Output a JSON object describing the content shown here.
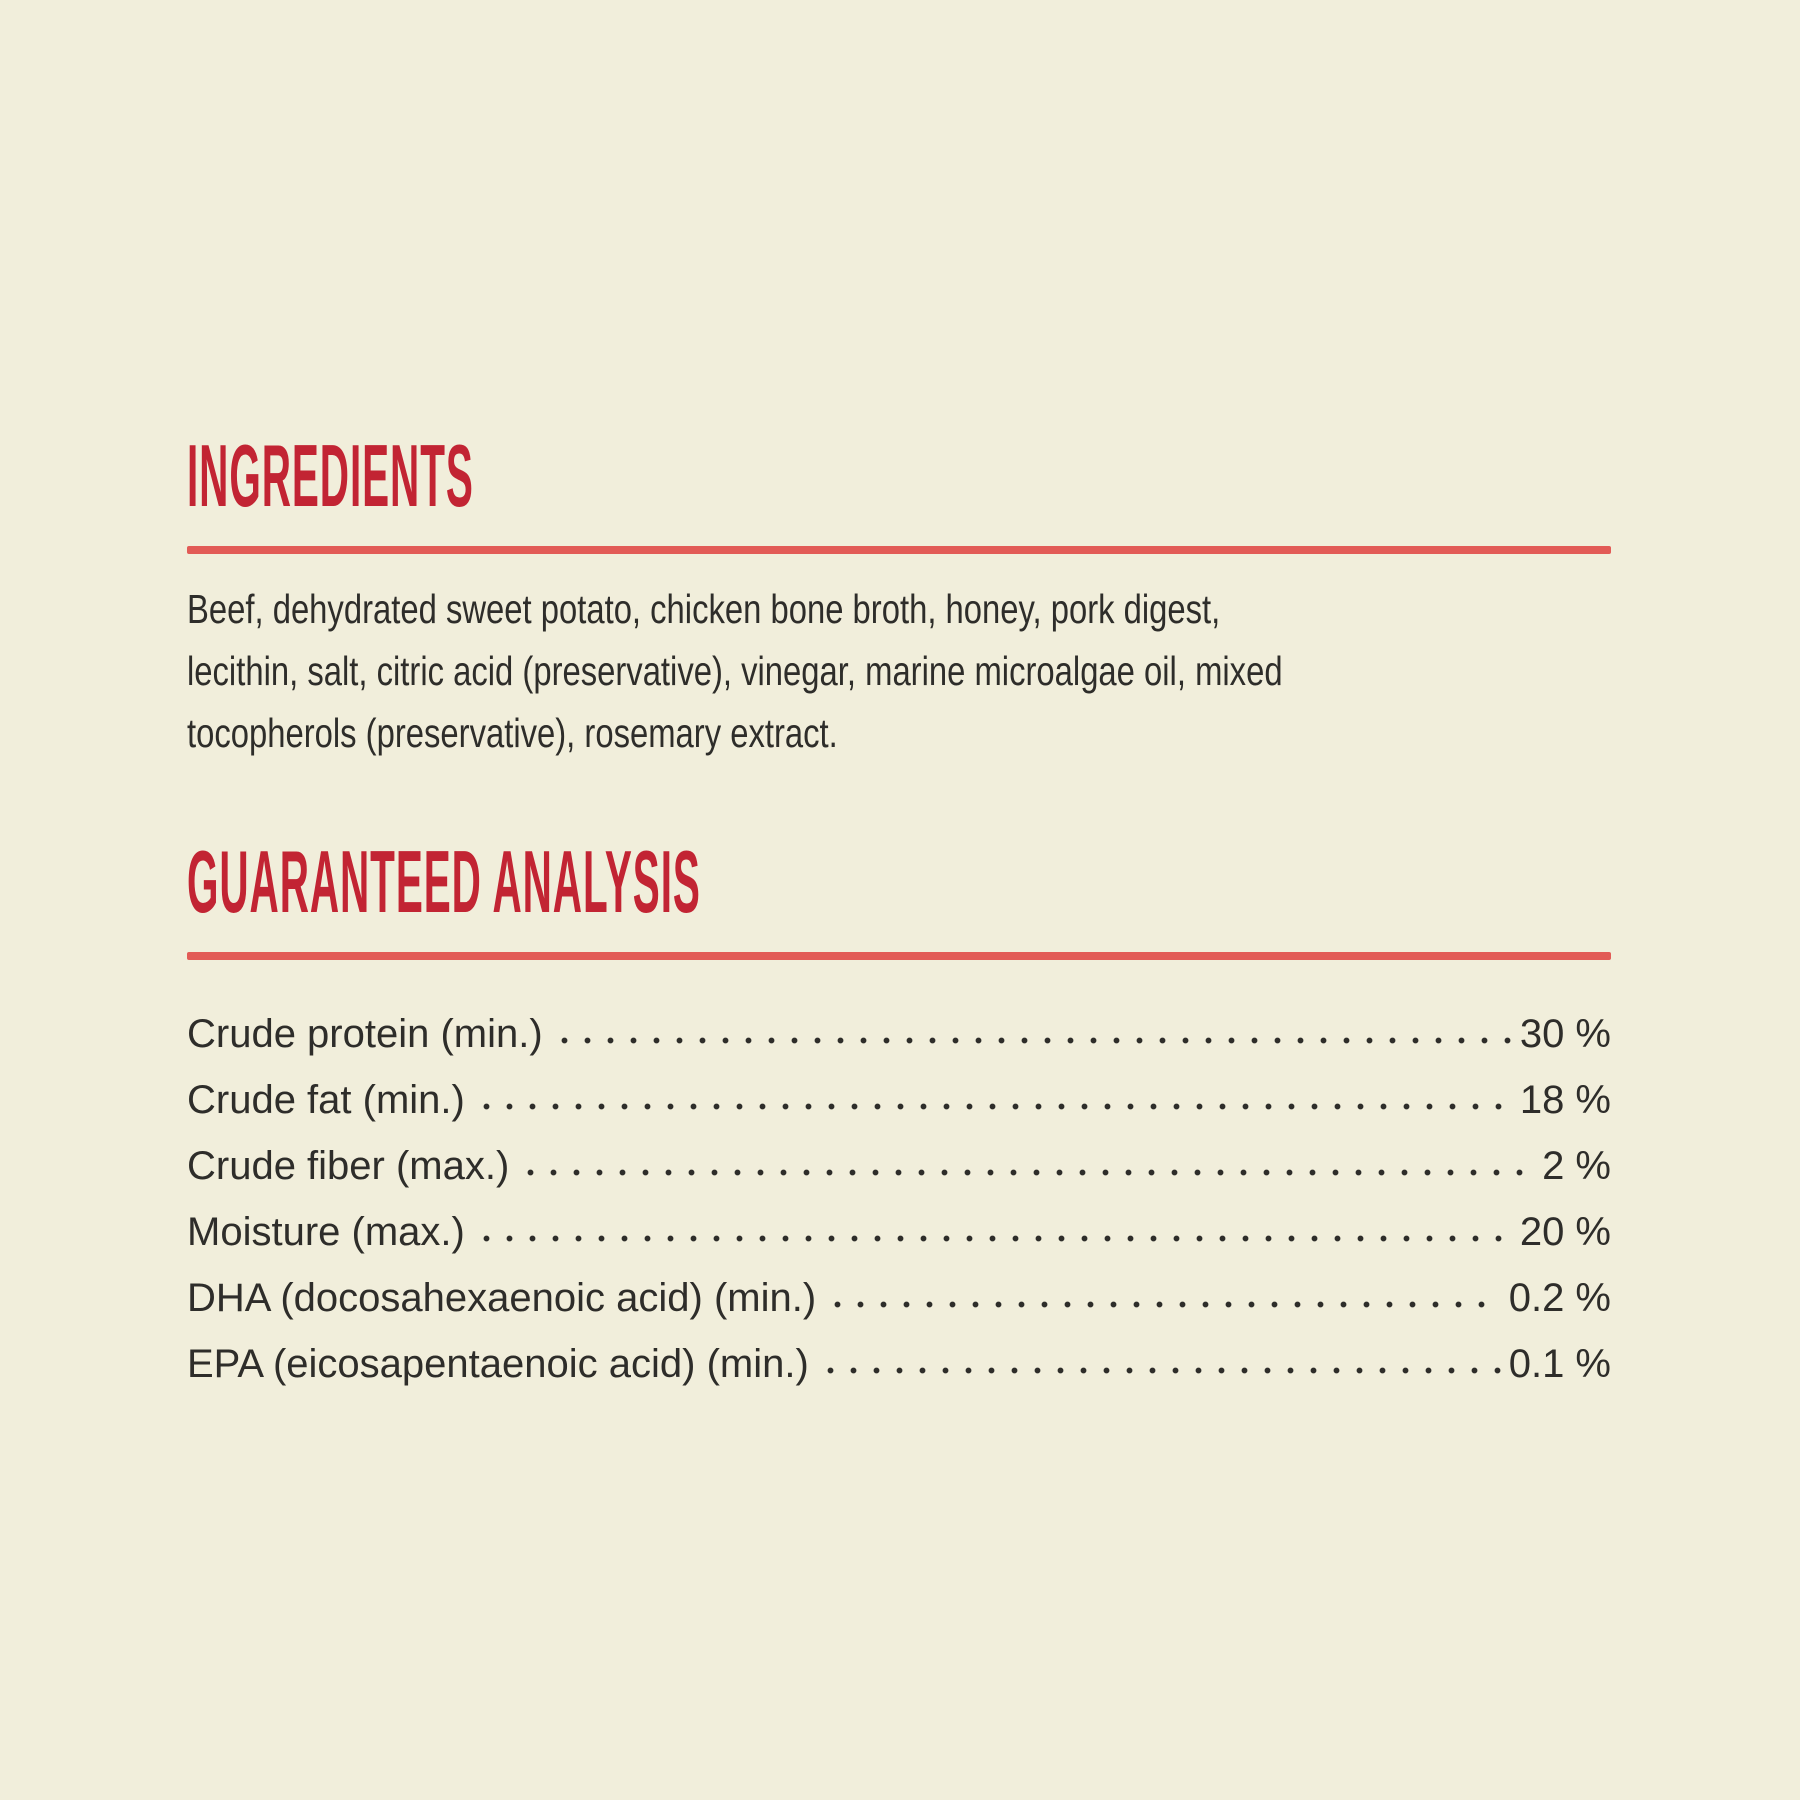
{
  "colors": {
    "background": "#f1eedb",
    "heading_red": "#c22433",
    "divider_red": "#e25b56",
    "text_ink": "#2e2d2a"
  },
  "ingredients": {
    "title": "INGREDIENTS",
    "lines": [
      "Beef, dehydrated sweet potato, chicken bone broth, honey, pork digest,",
      "lecithin, salt, citric acid (preservative), vinegar, marine microalgae oil, mixed",
      "tocopherols (preservative), rosemary extract."
    ],
    "full_text": "Beef, dehydrated sweet potato, chicken bone broth, honey, pork digest, lecithin, salt, citric acid (preservative), vinegar, marine microalgae oil, mixed tocopherols (preservative), rosemary extract."
  },
  "guaranteed_analysis": {
    "title": "GUARANTEED ANALYSIS",
    "rows": [
      {
        "label": "Crude protein (min.)",
        "value": "30 %"
      },
      {
        "label": "Crude fat (min.)",
        "value": "18 %"
      },
      {
        "label": "Crude fiber (max.)",
        "value": "2 %"
      },
      {
        "label": "Moisture (max.)",
        "value": "20 %"
      },
      {
        "label": "DHA (docosahexaenoic acid) (min.)",
        "value": "0.2 %"
      },
      {
        "label": "EPA (eicosapentaenoic acid) (min.)",
        "value": "0.1 %"
      }
    ]
  }
}
